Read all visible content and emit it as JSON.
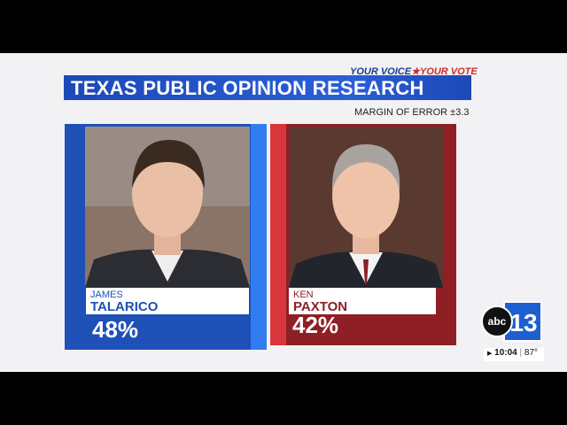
{
  "header": {
    "tagline_left": "YOUR VOICE",
    "tagline_star": "★",
    "tagline_right": "YOUR VOTE",
    "title": "TEXAS PUBLIC OPINION RESEARCH",
    "margin_of_error": "MARGIN OF ERROR ±3.3"
  },
  "candidates": [
    {
      "first_name": "JAMES",
      "last_name": "TALARICO",
      "percent": "48%"
    },
    {
      "first_name": "KEN",
      "last_name": "PAXTON",
      "percent": "42%"
    }
  ],
  "station": {
    "logo_left": "abc",
    "logo_right": "13",
    "time": "10:04",
    "temperature": "87°"
  }
}
